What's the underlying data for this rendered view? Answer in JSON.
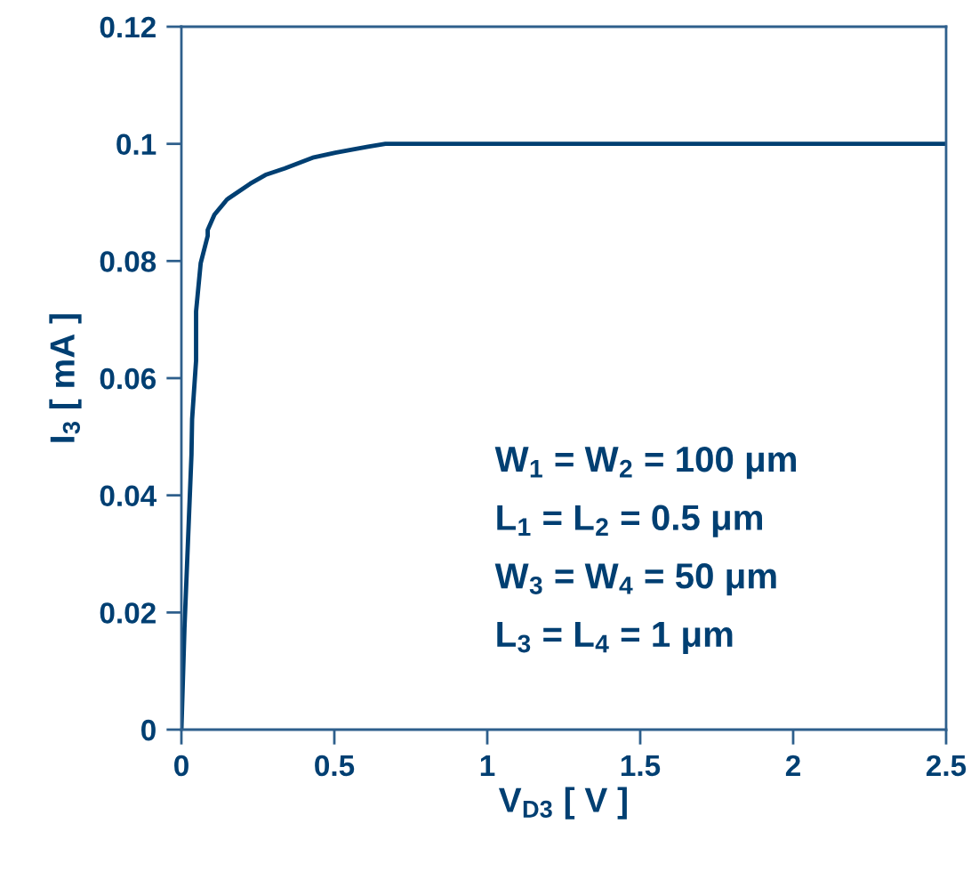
{
  "chart_data": {
    "type": "line",
    "xlabel": "V$_{D3}$ [ V ]",
    "ylabel": "I$_{3}$ [ mA ]",
    "xlim": [
      0,
      2.5
    ],
    "xticks": [
      0,
      0.5,
      1,
      1.5,
      2,
      2.5
    ],
    "ylim": [
      0,
      0.12
    ],
    "yticks": [
      0,
      0.02,
      0.04,
      0.06,
      0.08,
      0.1,
      0.12
    ],
    "grid": false,
    "legend": false,
    "marker": "none",
    "line_style": "solid",
    "series": [
      {
        "color": "#003f72",
        "x": [
          0,
          0.01,
          0.033,
          0.035,
          0.048,
          0.048,
          0.063,
          0.086,
          0.086,
          0.108,
          0.149,
          0.225,
          0.275,
          0.338,
          0.433,
          0.503,
          0.566,
          0.61,
          0.667,
          1.0,
          1.5,
          2.0,
          2.5
        ],
        "values": [
          0,
          0.0172,
          0.047,
          0.053,
          0.063,
          0.0714,
          0.0796,
          0.0843,
          0.0853,
          0.0879,
          0.0905,
          0.0932,
          0.0947,
          0.0958,
          0.0977,
          0.0985,
          0.0991,
          0.0995,
          0.1,
          0.1,
          0.1,
          0.1,
          0.1
        ]
      }
    ],
    "annotations": [
      "W$_{1}$ = W$_{2}$ = 100 μm",
      "L$_{1}$ = L$_{2}$ = 0.5 μm",
      "W$_{3}$ = W$_{4}$ = 50 μm",
      "L$_{3}$ = L$_{4}$ = 1 μm"
    ]
  }
}
